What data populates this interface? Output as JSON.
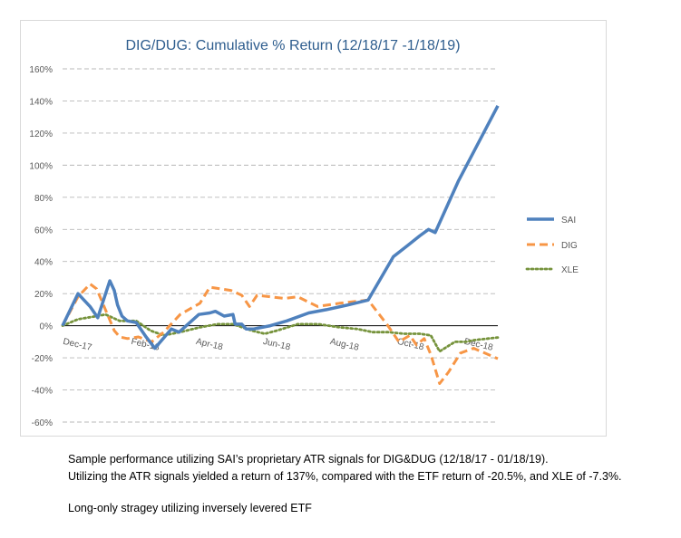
{
  "chart_data": {
    "type": "line",
    "title": "DIG/DUG: Cumulative % Return (12/18/17 -1/18/19)",
    "title_color": "#2e5d8e",
    "xlabel": "",
    "ylabel": "",
    "ylim": [
      -0.6,
      1.6
    ],
    "y_ticks": [
      -0.6,
      -0.4,
      -0.2,
      0,
      0.2,
      0.4,
      0.6,
      0.8,
      1.0,
      1.2,
      1.4,
      1.6
    ],
    "y_tick_labels": [
      "-60%",
      "-40%",
      "-20%",
      "0%",
      "20%",
      "40%",
      "60%",
      "80%",
      "100%",
      "120%",
      "140%",
      "160%"
    ],
    "x_range": [
      "2017-12-18",
      "2019-01-18"
    ],
    "x_ticks": [
      {
        "date": "2017-12-18",
        "label": "Dec-17"
      },
      {
        "date": "2018-02-18",
        "label": "Feb-18"
      },
      {
        "date": "2018-04-18",
        "label": "Apr-18"
      },
      {
        "date": "2018-06-18",
        "label": "Jun-18"
      },
      {
        "date": "2018-08-18",
        "label": "Aug-18"
      },
      {
        "date": "2018-10-18",
        "label": "Oct-18"
      },
      {
        "date": "2018-12-18",
        "label": "Dec-18"
      }
    ],
    "grid": "horizontal dashed",
    "legend_position": "right",
    "series": [
      {
        "name": "SAI",
        "color": "#4f81bd",
        "style": "solid",
        "points": [
          [
            "2017-12-18",
            0.0
          ],
          [
            "2018-01-01",
            0.2
          ],
          [
            "2018-01-12",
            0.12
          ],
          [
            "2018-01-19",
            0.05
          ],
          [
            "2018-01-30",
            0.28
          ],
          [
            "2018-02-03",
            0.22
          ],
          [
            "2018-02-06",
            0.13
          ],
          [
            "2018-02-10",
            0.06
          ],
          [
            "2018-02-15",
            0.03
          ],
          [
            "2018-02-23",
            0.02
          ],
          [
            "2018-03-04",
            -0.07
          ],
          [
            "2018-03-12",
            -0.14
          ],
          [
            "2018-03-27",
            -0.02
          ],
          [
            "2018-04-03",
            -0.04
          ],
          [
            "2018-04-21",
            0.07
          ],
          [
            "2018-05-01",
            0.08
          ],
          [
            "2018-05-06",
            0.09
          ],
          [
            "2018-05-14",
            0.06
          ],
          [
            "2018-05-22",
            0.07
          ],
          [
            "2018-05-24",
            0.01
          ],
          [
            "2018-05-30",
            0.01
          ],
          [
            "2018-06-03",
            -0.02
          ],
          [
            "2018-06-10",
            -0.02
          ],
          [
            "2018-06-25",
            0.0
          ],
          [
            "2018-07-10",
            0.03
          ],
          [
            "2018-07-30",
            0.08
          ],
          [
            "2018-08-15",
            0.1
          ],
          [
            "2018-09-04",
            0.13
          ],
          [
            "2018-09-22",
            0.16
          ],
          [
            "2018-10-15",
            0.43
          ],
          [
            "2018-10-28",
            0.5
          ],
          [
            "2018-11-08",
            0.56
          ],
          [
            "2018-11-16",
            0.6
          ],
          [
            "2018-11-22",
            0.58
          ],
          [
            "2018-12-13",
            0.9
          ],
          [
            "2019-01-18",
            1.37
          ]
        ]
      },
      {
        "name": "DIG",
        "color": "#f79646",
        "style": "dashed",
        "points": [
          [
            "2017-12-18",
            0.0
          ],
          [
            "2018-01-01",
            0.18
          ],
          [
            "2018-01-12",
            0.26
          ],
          [
            "2018-01-18",
            0.23
          ],
          [
            "2018-01-26",
            0.1
          ],
          [
            "2018-02-03",
            -0.03
          ],
          [
            "2018-02-08",
            -0.07
          ],
          [
            "2018-02-15",
            -0.08
          ],
          [
            "2018-02-25",
            -0.07
          ],
          [
            "2018-03-09",
            -0.1
          ],
          [
            "2018-03-20",
            -0.04
          ],
          [
            "2018-04-04",
            0.07
          ],
          [
            "2018-04-22",
            0.14
          ],
          [
            "2018-05-01",
            0.24
          ],
          [
            "2018-05-20",
            0.22
          ],
          [
            "2018-05-30",
            0.19
          ],
          [
            "2018-06-06",
            0.12
          ],
          [
            "2018-06-13",
            0.19
          ],
          [
            "2018-07-08",
            0.17
          ],
          [
            "2018-07-20",
            0.18
          ],
          [
            "2018-08-07",
            0.12
          ],
          [
            "2018-08-27",
            0.14
          ],
          [
            "2018-09-22",
            0.16
          ],
          [
            "2018-10-10",
            0.0
          ],
          [
            "2018-10-20",
            -0.1
          ],
          [
            "2018-10-30",
            -0.06
          ],
          [
            "2018-11-05",
            -0.12
          ],
          [
            "2018-11-12",
            -0.08
          ],
          [
            "2018-11-18",
            -0.18
          ],
          [
            "2018-11-26",
            -0.36
          ],
          [
            "2018-12-04",
            -0.29
          ],
          [
            "2018-12-15",
            -0.17
          ],
          [
            "2018-12-27",
            -0.14
          ],
          [
            "2019-01-18",
            -0.205
          ]
        ]
      },
      {
        "name": "XLE",
        "color": "#76933c",
        "style": "dotted",
        "points": [
          [
            "2017-12-18",
            0.0
          ],
          [
            "2018-01-01",
            0.04
          ],
          [
            "2018-01-18",
            0.06
          ],
          [
            "2018-01-26",
            0.07
          ],
          [
            "2018-02-08",
            0.03
          ],
          [
            "2018-02-23",
            0.03
          ],
          [
            "2018-03-08",
            -0.03
          ],
          [
            "2018-03-20",
            -0.06
          ],
          [
            "2018-04-04",
            -0.04
          ],
          [
            "2018-04-22",
            -0.01
          ],
          [
            "2018-05-08",
            0.01
          ],
          [
            "2018-05-22",
            0.01
          ],
          [
            "2018-06-08",
            -0.03
          ],
          [
            "2018-06-20",
            -0.05
          ],
          [
            "2018-07-01",
            -0.03
          ],
          [
            "2018-07-20",
            0.01
          ],
          [
            "2018-08-08",
            0.01
          ],
          [
            "2018-08-27",
            -0.01
          ],
          [
            "2018-09-12",
            -0.02
          ],
          [
            "2018-09-26",
            -0.04
          ],
          [
            "2018-10-10",
            -0.04
          ],
          [
            "2018-10-25",
            -0.05
          ],
          [
            "2018-11-08",
            -0.05
          ],
          [
            "2018-11-18",
            -0.06
          ],
          [
            "2018-11-26",
            -0.16
          ],
          [
            "2018-12-10",
            -0.1
          ],
          [
            "2018-12-20",
            -0.1
          ],
          [
            "2018-12-27",
            -0.09
          ],
          [
            "2019-01-18",
            -0.073
          ]
        ]
      }
    ]
  },
  "caption": {
    "line1": "Sample performance utilizing SAI’s proprietary ATR signals for DIG&DUG (12/18/17 - 01/18/19).",
    "line2": "Utilizing the ATR signals yielded a return of 137%, compared with the ETF return of -20.5%, and XLE of -7.3%.",
    "line3": "Long-only stragey utilizing inversely levered ETF"
  }
}
